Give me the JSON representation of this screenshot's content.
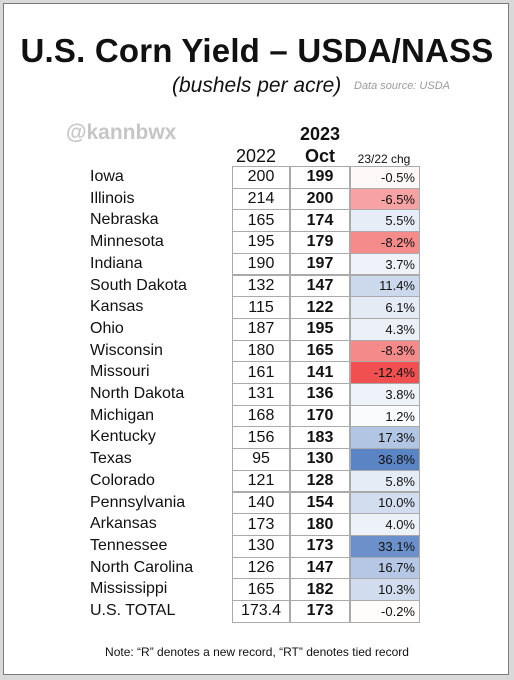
{
  "title": "U.S. Corn Yield – USDA/NASS",
  "subtitle": "(bushels per acre)",
  "source": "Data source: USDA",
  "watermark": "@kannbwx",
  "headers": {
    "col2022": "2022",
    "col2023_top": "2023",
    "col2023_bottom": "Oct",
    "chg": "23/22 chg"
  },
  "note": "Note: “R” denotes a new record, “RT” denotes tied record",
  "colors": {
    "negative_strong": "#f05050",
    "positive_strong": "#5b84c4"
  },
  "chart_data": {
    "type": "table",
    "columns": [
      "2022",
      "2023 Oct",
      "23/22 chg"
    ],
    "rows": [
      {
        "state": "Iowa",
        "y2022": "200",
        "y2023": "199",
        "chg": "-0.5%",
        "pct": -0.5
      },
      {
        "state": "Illinois",
        "y2022": "214",
        "y2023": "200",
        "chg": "-6.5%",
        "pct": -6.5
      },
      {
        "state": "Nebraska",
        "y2022": "165",
        "y2023": "174",
        "chg": "5.5%",
        "pct": 5.5
      },
      {
        "state": "Minnesota",
        "y2022": "195",
        "y2023": "179",
        "chg": "-8.2%",
        "pct": -8.2
      },
      {
        "state": "Indiana",
        "y2022": "190",
        "y2023": "197",
        "chg": "3.7%",
        "pct": 3.7
      },
      {
        "state": "South Dakota",
        "y2022": "132",
        "y2023": "147",
        "chg": "11.4%",
        "pct": 11.4
      },
      {
        "state": "Kansas",
        "y2022": "115",
        "y2023": "122",
        "chg": "6.1%",
        "pct": 6.1
      },
      {
        "state": "Ohio",
        "y2022": "187",
        "y2023": "195",
        "chg": "4.3%",
        "pct": 4.3
      },
      {
        "state": "Wisconsin",
        "y2022": "180",
        "y2023": "165",
        "chg": "-8.3%",
        "pct": -8.3
      },
      {
        "state": "Missouri",
        "y2022": "161",
        "y2023": "141",
        "chg": "-12.4%",
        "pct": -12.4
      },
      {
        "state": "North Dakota",
        "y2022": "131",
        "y2023": "136",
        "chg": "3.8%",
        "pct": 3.8
      },
      {
        "state": "Michigan",
        "y2022": "168",
        "y2023": "170",
        "chg": "1.2%",
        "pct": 1.2
      },
      {
        "state": "Kentucky",
        "y2022": "156",
        "y2023": "183",
        "chg": "17.3%",
        "pct": 17.3
      },
      {
        "state": "Texas",
        "y2022": "95",
        "y2023": "130",
        "chg": "36.8%",
        "pct": 36.8
      },
      {
        "state": "Colorado",
        "y2022": "121",
        "y2023": "128",
        "chg": "5.8%",
        "pct": 5.8
      },
      {
        "state": "Pennsylvania",
        "y2022": "140",
        "y2023": "154",
        "chg": "10.0%",
        "pct": 10.0
      },
      {
        "state": "Arkansas",
        "y2022": "173",
        "y2023": "180",
        "chg": "4.0%",
        "pct": 4.0
      },
      {
        "state": "Tennessee",
        "y2022": "130",
        "y2023": "173",
        "chg": "33.1%",
        "pct": 33.1
      },
      {
        "state": "North Carolina",
        "y2022": "126",
        "y2023": "147",
        "chg": "16.7%",
        "pct": 16.7
      },
      {
        "state": "Mississippi",
        "y2022": "165",
        "y2023": "182",
        "chg": "10.3%",
        "pct": 10.3
      },
      {
        "state": "U.S. TOTAL",
        "y2022": "173.4",
        "y2023": "173",
        "chg": "-0.2%",
        "pct": -0.2
      }
    ]
  }
}
